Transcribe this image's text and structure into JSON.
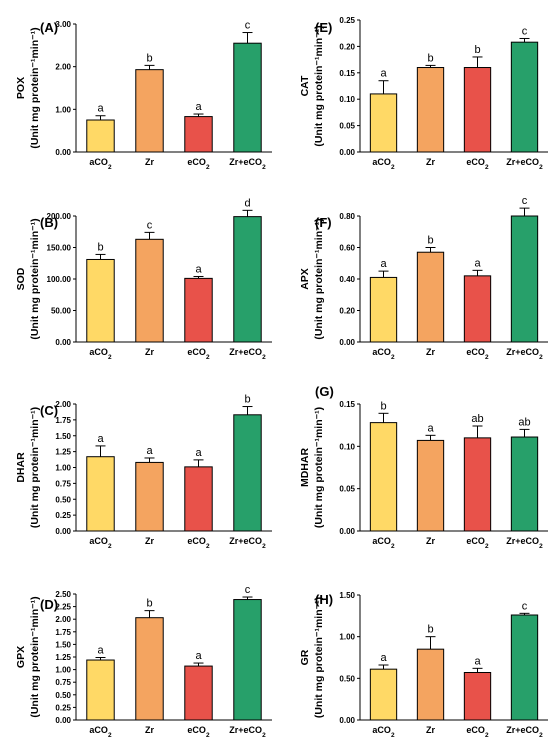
{
  "chart_data": [
    {
      "panel": "(A)",
      "type": "bar",
      "ylabel": "POX",
      "ylabel_unit": "(Unit mg protein⁻¹min⁻¹)",
      "ylim": [
        0,
        3
      ],
      "yticks": [
        "0.00",
        "1.00",
        "2.00",
        "3.00"
      ],
      "ytick_values": [
        0,
        1,
        2,
        3
      ],
      "categories": [
        "aCO₂",
        "Zr",
        "eCO₂",
        "Zr+eCO₂"
      ],
      "values": [
        0.75,
        1.93,
        0.83,
        2.55
      ],
      "errors": [
        0.1,
        0.1,
        0.06,
        0.25
      ],
      "letters": [
        "a",
        "b",
        "a",
        "c"
      ]
    },
    {
      "panel": "(E)",
      "type": "bar",
      "ylabel": "CAT",
      "ylabel_unit": "(Unit mg protein⁻¹min⁻¹)",
      "ylim": [
        0,
        0.25
      ],
      "yticks": [
        "0.00",
        "0.05",
        "0.10",
        "0.15",
        "0.20",
        "0.25"
      ],
      "ytick_values": [
        0,
        0.05,
        0.1,
        0.15,
        0.2,
        0.25
      ],
      "categories": [
        "aCO₂",
        "Zr",
        "eCO₂",
        "Zr+eCO₂"
      ],
      "values": [
        0.11,
        0.16,
        0.16,
        0.208
      ],
      "errors": [
        0.025,
        0.004,
        0.02,
        0.007
      ],
      "letters": [
        "a",
        "b",
        "b",
        "c"
      ]
    },
    {
      "panel": "(B)",
      "type": "bar",
      "ylabel": "SOD",
      "ylabel_unit": "(Unit mg protein⁻¹min⁻¹)",
      "ylim": [
        0,
        200
      ],
      "yticks": [
        "0.00",
        "50.00",
        "100.00",
        "150.00",
        "200.00"
      ],
      "ytick_values": [
        0,
        50,
        100,
        150,
        200
      ],
      "categories": [
        "aCO₂",
        "Zr",
        "eCO₂",
        "Zr+eCO₂"
      ],
      "values": [
        131,
        163,
        101,
        199
      ],
      "errors": [
        8,
        11,
        3,
        10
      ],
      "letters": [
        "b",
        "c",
        "a",
        "d"
      ]
    },
    {
      "panel": "(F)",
      "type": "bar",
      "ylabel": "APX",
      "ylabel_unit": "(Unit mg protein⁻¹min⁻¹)",
      "ylim": [
        0,
        0.8
      ],
      "yticks": [
        "0.00",
        "0.20",
        "0.40",
        "0.60",
        "0.80"
      ],
      "ytick_values": [
        0,
        0.2,
        0.4,
        0.6,
        0.8
      ],
      "categories": [
        "aCO₂",
        "Zr",
        "eCO₂",
        "Zr+eCO₂"
      ],
      "values": [
        0.41,
        0.57,
        0.42,
        0.8
      ],
      "errors": [
        0.04,
        0.03,
        0.035,
        0.05
      ],
      "letters": [
        "a",
        "b",
        "a",
        "c"
      ]
    },
    {
      "panel": "(C)",
      "type": "bar",
      "ylabel": "DHAR",
      "ylabel_unit": "(Unit mg protein⁻¹min⁻¹)",
      "ylim": [
        0,
        2
      ],
      "yticks": [
        "0.00",
        "0.25",
        "0.50",
        "0.75",
        "1.00",
        "1.25",
        "1.50",
        "1.75",
        "2.00"
      ],
      "ytick_values": [
        0,
        0.25,
        0.5,
        0.75,
        1,
        1.25,
        1.5,
        1.75,
        2
      ],
      "categories": [
        "aCO₂",
        "Zr",
        "eCO₂",
        "Zr+eCO₂"
      ],
      "values": [
        1.17,
        1.08,
        1.01,
        1.83
      ],
      "errors": [
        0.17,
        0.07,
        0.11,
        0.13
      ],
      "letters": [
        "a",
        "a",
        "a",
        "b"
      ]
    },
    {
      "panel": "(G)",
      "type": "bar",
      "ylabel": "MDHAR",
      "ylabel_unit": "(Unit mg protein⁻¹min⁻¹)",
      "ylim": [
        0,
        0.15
      ],
      "yticks": [
        "0.00",
        "0.05",
        "0.10",
        "0.15"
      ],
      "ytick_values": [
        0,
        0.05,
        0.1,
        0.15
      ],
      "categories": [
        "aCO₂",
        "Zr",
        "eCO₂",
        "Zr+eCO₂"
      ],
      "values": [
        0.128,
        0.107,
        0.11,
        0.111
      ],
      "errors": [
        0.011,
        0.006,
        0.014,
        0.009
      ],
      "letters": [
        "b",
        "a",
        "ab",
        "ab"
      ]
    },
    {
      "panel": "(D)",
      "type": "bar",
      "ylabel": "GPX",
      "ylabel_unit": "(Unit mg protein⁻¹min⁻¹)",
      "ylim": [
        0,
        2.5
      ],
      "yticks": [
        "0.00",
        "0.25",
        "0.50",
        "0.75",
        "1.00",
        "1.25",
        "1.50",
        "1.75",
        "2.00",
        "2.25",
        "2.50"
      ],
      "ytick_values": [
        0,
        0.25,
        0.5,
        0.75,
        1,
        1.25,
        1.5,
        1.75,
        2,
        2.25,
        2.5
      ],
      "categories": [
        "aCO₂",
        "Zr",
        "eCO₂",
        "Zr+eCO₂"
      ],
      "values": [
        1.19,
        2.03,
        1.07,
        2.39
      ],
      "errors": [
        0.05,
        0.14,
        0.06,
        0.05
      ],
      "letters": [
        "a",
        "b",
        "a",
        "c"
      ]
    },
    {
      "panel": "(H)",
      "type": "bar",
      "ylabel": "GR",
      "ylabel_unit": "(Unit mg protein⁻¹min⁻¹)",
      "ylim": [
        0,
        1.5
      ],
      "yticks": [
        "0.00",
        "0.50",
        "1.00",
        "1.50"
      ],
      "ytick_values": [
        0,
        0.5,
        1,
        1.5
      ],
      "categories": [
        "aCO₂",
        "Zr",
        "eCO₂",
        "Zr+eCO₂"
      ],
      "values": [
        0.61,
        0.85,
        0.57,
        1.26
      ],
      "errors": [
        0.05,
        0.15,
        0.05,
        0.02
      ],
      "letters": [
        "a",
        "b",
        "a",
        "c"
      ]
    }
  ],
  "colors": {
    "aCO2": "#FFD966",
    "Zr": "#F4A460",
    "eCO2": "#E8524A",
    "ZreCO2": "#27A06A",
    "axis": "#000000"
  }
}
